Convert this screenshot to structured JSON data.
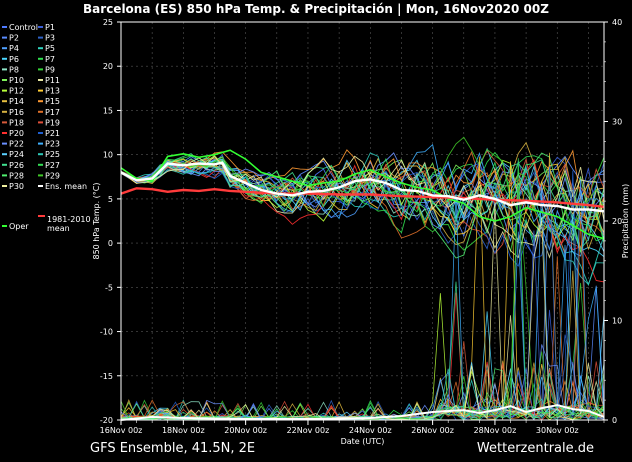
{
  "title": "Barcelona  (ES)  850 hPa Temp. & Precipitación | Mon, 16Nov2020 00Z",
  "footer_left": "GFS Ensemble, 41.5N, 2E",
  "footer_right": "Wetterzentrale.de",
  "chart_data": {
    "type": "line",
    "ylabel": "850 hPa Temp. (°C)",
    "y2label": "Precipitation (mm)",
    "xlabel": "Date (UTC)",
    "ylim": [
      -20,
      25
    ],
    "y2lim": [
      0,
      40
    ],
    "yticks": [
      "25",
      "20",
      "15",
      "10",
      "5",
      "0",
      "-5",
      "-10",
      "-15",
      "-20"
    ],
    "y2ticks": [
      "40",
      "30",
      "20",
      "10",
      "0"
    ],
    "xticks": [
      "16Nov 00z",
      "18Nov 00z",
      "20Nov 00z",
      "22Nov 00z",
      "24Nov 00z",
      "26Nov 00z",
      "28Nov 00z",
      "30Nov 00z"
    ],
    "x_range_days": [
      0,
      15.5
    ],
    "legend": [
      {
        "name": "Control",
        "color": "#4f7bff"
      },
      {
        "name": "P1",
        "color": "#3a5fd9"
      },
      {
        "name": "P2",
        "color": "#5a8cff"
      },
      {
        "name": "P3",
        "color": "#2f63c8"
      },
      {
        "name": "P4",
        "color": "#4fa0ff"
      },
      {
        "name": "P5",
        "color": "#2fd4c0"
      },
      {
        "name": "P6",
        "color": "#4ad6ff"
      },
      {
        "name": "P7",
        "color": "#2fe04f"
      },
      {
        "name": "P8",
        "color": "#8fe6c8"
      },
      {
        "name": "P9",
        "color": "#35d43a"
      },
      {
        "name": "P10",
        "color": "#7ff25a"
      },
      {
        "name": "P11",
        "color": "#e6e6a0"
      },
      {
        "name": "P12",
        "color": "#b8ff3a"
      },
      {
        "name": "P13",
        "color": "#ffcc33"
      },
      {
        "name": "P14",
        "color": "#e8c040"
      },
      {
        "name": "P15",
        "color": "#ff9933"
      },
      {
        "name": "P16",
        "color": "#d4b040"
      },
      {
        "name": "P17",
        "color": "#e0702a"
      },
      {
        "name": "P18",
        "color": "#d85a3a"
      },
      {
        "name": "P19",
        "color": "#e0503a"
      },
      {
        "name": "P20",
        "color": "#ff3030"
      },
      {
        "name": "P21",
        "color": "#1f5fd0"
      },
      {
        "name": "P22",
        "color": "#6a90ff"
      },
      {
        "name": "P23",
        "color": "#3fb0ff"
      },
      {
        "name": "P24",
        "color": "#5ad0ff"
      },
      {
        "name": "P25",
        "color": "#2ec8b8"
      },
      {
        "name": "P26",
        "color": "#40e090"
      },
      {
        "name": "P27",
        "color": "#33dd55"
      },
      {
        "name": "P28",
        "color": "#50f070"
      },
      {
        "name": "P29",
        "color": "#40c828"
      },
      {
        "name": "P30",
        "color": "#f0f0a0"
      },
      {
        "name": "Ens. mean",
        "color": "#ffffff"
      },
      {
        "name": "1981-2010 mean",
        "color": "#ff3b3b"
      },
      {
        "name": "Oper",
        "color": "#33ff33"
      }
    ],
    "ens_mean": [
      [
        0,
        8
      ],
      [
        0.5,
        7.1
      ],
      [
        1,
        7.3
      ],
      [
        1.5,
        9.0
      ],
      [
        2,
        8.8
      ],
      [
        2.5,
        9.0
      ],
      [
        3,
        8.9
      ],
      [
        3.25,
        9.1
      ],
      [
        3.5,
        7.6
      ],
      [
        4,
        6.8
      ],
      [
        4.5,
        6.0
      ],
      [
        5,
        5.6
      ],
      [
        5.5,
        5.4
      ],
      [
        6,
        5.8
      ],
      [
        6.5,
        5.9
      ],
      [
        7,
        6.3
      ],
      [
        7.5,
        7.0
      ],
      [
        8,
        7.2
      ],
      [
        8.5,
        6.8
      ],
      [
        9,
        6.0
      ],
      [
        9.5,
        5.9
      ],
      [
        10,
        5.4
      ],
      [
        10.5,
        5.3
      ],
      [
        11,
        4.9
      ],
      [
        11.5,
        5.4
      ],
      [
        12,
        5.0
      ],
      [
        12.5,
        4.3
      ],
      [
        13,
        4.6
      ],
      [
        13.5,
        4.3
      ],
      [
        14,
        4.2
      ],
      [
        14.5,
        3.8
      ],
      [
        15,
        3.8
      ],
      [
        15.5,
        3.6
      ]
    ],
    "climate_mean": [
      [
        0,
        5.6
      ],
      [
        0.5,
        6.2
      ],
      [
        1,
        6.1
      ],
      [
        1.5,
        5.8
      ],
      [
        2,
        6.0
      ],
      [
        2.5,
        5.9
      ],
      [
        3,
        6.1
      ],
      [
        3.5,
        5.9
      ],
      [
        4,
        5.8
      ],
      [
        4.5,
        5.7
      ],
      [
        5,
        5.6
      ],
      [
        6,
        5.6
      ],
      [
        7,
        5.5
      ],
      [
        8,
        5.5
      ],
      [
        9,
        5.3
      ],
      [
        10,
        5.2
      ],
      [
        11,
        5.1
      ],
      [
        12,
        4.9
      ],
      [
        13,
        4.8
      ],
      [
        14,
        4.6
      ],
      [
        15,
        4.3
      ],
      [
        15.5,
        4.1
      ]
    ],
    "oper": [
      [
        0,
        8.5
      ],
      [
        0.5,
        7.3
      ],
      [
        1,
        7.0
      ],
      [
        1.5,
        9.8
      ],
      [
        2,
        10.1
      ],
      [
        2.5,
        9.7
      ],
      [
        3,
        10.0
      ],
      [
        3.5,
        10.5
      ],
      [
        4,
        9.5
      ],
      [
        4.5,
        8.0
      ],
      [
        5,
        7.5
      ],
      [
        5.5,
        7.0
      ],
      [
        6,
        6.5
      ],
      [
        6.5,
        6.8
      ],
      [
        7,
        7.0
      ],
      [
        7.5,
        7.8
      ],
      [
        8,
        8.3
      ],
      [
        8.5,
        7.5
      ],
      [
        9,
        6.8
      ],
      [
        9.5,
        6.3
      ],
      [
        10,
        6.0
      ],
      [
        10.5,
        5.0
      ],
      [
        11,
        4.5
      ],
      [
        11.5,
        3.0
      ],
      [
        12,
        2.5
      ],
      [
        12.5,
        3.0
      ],
      [
        13,
        4.0
      ],
      [
        13.5,
        3.5
      ],
      [
        14,
        3.0
      ],
      [
        14.5,
        2.0
      ],
      [
        15,
        1.0
      ],
      [
        15.5,
        0.5
      ]
    ],
    "precip_ens_mean": [
      [
        0,
        0
      ],
      [
        1,
        0.3
      ],
      [
        2,
        0.2
      ],
      [
        4,
        0.1
      ],
      [
        6,
        0.1
      ],
      [
        8,
        0.2
      ],
      [
        9,
        0.4
      ],
      [
        10,
        0.8
      ],
      [
        11,
        1.0
      ],
      [
        11.5,
        0.7
      ],
      [
        12,
        1.0
      ],
      [
        12.5,
        1.4
      ],
      [
        13,
        0.8
      ],
      [
        13.5,
        1.2
      ],
      [
        14,
        1.5
      ],
      [
        14.5,
        1.1
      ],
      [
        15,
        0.9
      ],
      [
        15.5,
        0.3
      ]
    ]
  }
}
